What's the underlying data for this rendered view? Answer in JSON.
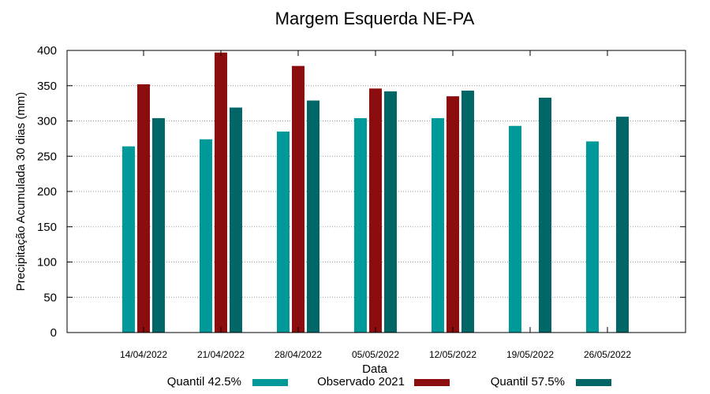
{
  "chart_data": {
    "type": "bar",
    "title": "Margem Esquerda NE-PA",
    "xlabel": "Data",
    "ylabel": "Precipitação Acumulada 30 dias (mm)",
    "ylim": [
      0,
      400
    ],
    "yticks": [
      0,
      50,
      100,
      150,
      200,
      250,
      300,
      350,
      400
    ],
    "grid": true,
    "legend_position": "bottom",
    "categories": [
      "14/04/2022",
      "21/04/2022",
      "28/04/2022",
      "05/05/2022",
      "12/05/2022",
      "19/05/2022",
      "26/05/2022"
    ],
    "series": [
      {
        "name": "Quantil 42.5%",
        "color": "#009999",
        "values": [
          264,
          274,
          285,
          304,
          304,
          293,
          271
        ]
      },
      {
        "name": "Observado 2021",
        "color": "#8b0d0d",
        "values": [
          352,
          397,
          378,
          346,
          335,
          null,
          null
        ]
      },
      {
        "name": "Quantil 57.5%",
        "color": "#006666",
        "values": [
          304,
          319,
          329,
          342,
          343,
          333,
          306
        ]
      }
    ]
  }
}
